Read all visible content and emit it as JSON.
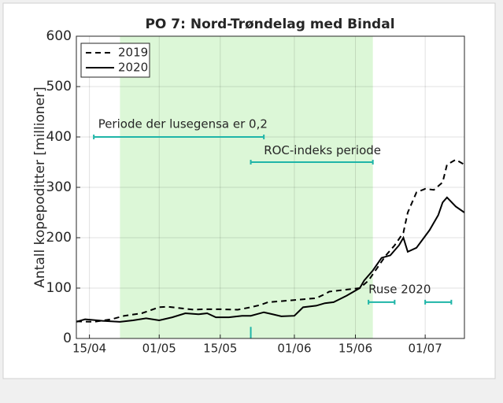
{
  "chart_data": {
    "type": "line",
    "title": "PO 7: Nord-Trøndelag med Bindal",
    "y_label": "Antall kopepoditter [millioner]",
    "xlim": [
      102,
      191
    ],
    "ylim": [
      0,
      600
    ],
    "xticks": [
      {
        "value": 105,
        "label": "15/04"
      },
      {
        "value": 121,
        "label": "01/05"
      },
      {
        "value": 135,
        "label": "15/05"
      },
      {
        "value": 152,
        "label": "01/06"
      },
      {
        "value": 166,
        "label": "15/06"
      },
      {
        "value": 182,
        "label": "01/07"
      }
    ],
    "yticks": [
      0,
      100,
      200,
      300,
      400,
      500,
      600
    ],
    "grid": true,
    "legend": "upper left",
    "shaded_range": {
      "x": [
        112,
        170
      ],
      "color": "#dcf7d7"
    },
    "marker": {
      "x": 142,
      "y": [
        0,
        23
      ],
      "color": "#1fb5a8"
    },
    "segments": [
      {
        "x": [
          106,
          145
        ],
        "y": 400,
        "color": "#1fb5a8"
      },
      {
        "x": [
          142,
          170
        ],
        "y": 350,
        "color": "#1fb5a8"
      },
      {
        "x": [
          169,
          175
        ],
        "y": 72,
        "color": "#1fb5a8"
      },
      {
        "x": [
          182,
          188
        ],
        "y": 72,
        "color": "#1fb5a8"
      }
    ],
    "annotations": [
      {
        "text": "Periode der lusegensa er 0,2",
        "x": 107,
        "y": 425
      },
      {
        "text": "ROC-indeks periode",
        "x": 145,
        "y": 373
      },
      {
        "text": "Ruse 2020",
        "x": 169,
        "y": 97
      }
    ],
    "series": [
      {
        "name": "2019",
        "color": "#000000",
        "line_style": "dashed",
        "x": [
          102,
          106,
          110,
          113,
          117,
          121,
          123,
          126,
          129,
          131,
          135,
          139,
          142,
          144,
          146,
          149,
          153,
          157,
          159,
          160,
          164,
          167,
          169,
          171,
          173,
          175,
          177,
          178,
          180,
          182,
          184,
          186,
          187,
          189,
          191
        ],
        "values": [
          34,
          33,
          38,
          45,
          50,
          62,
          63,
          60,
          57,
          58,
          58,
          57,
          62,
          66,
          72,
          74,
          77,
          80,
          88,
          93,
          97,
          100,
          115,
          140,
          165,
          185,
          210,
          250,
          290,
          297,
          295,
          310,
          345,
          355,
          345
        ]
      },
      {
        "name": "2020",
        "color": "#000000",
        "line_style": "solid",
        "x": [
          102,
          104,
          108,
          112,
          115,
          118,
          121,
          124,
          127,
          130,
          132,
          134,
          137,
          140,
          142,
          145,
          147,
          149,
          152,
          154,
          157,
          159,
          161,
          164,
          167,
          168,
          170,
          172,
          174,
          176,
          177,
          178,
          180,
          183,
          185,
          186,
          187,
          189,
          191
        ],
        "values": [
          33,
          38,
          35,
          33,
          36,
          40,
          36,
          42,
          50,
          48,
          50,
          42,
          42,
          45,
          45,
          52,
          48,
          44,
          45,
          62,
          65,
          70,
          72,
          85,
          100,
          115,
          135,
          160,
          165,
          185,
          200,
          172,
          180,
          215,
          245,
          270,
          280,
          262,
          250
        ]
      }
    ]
  }
}
